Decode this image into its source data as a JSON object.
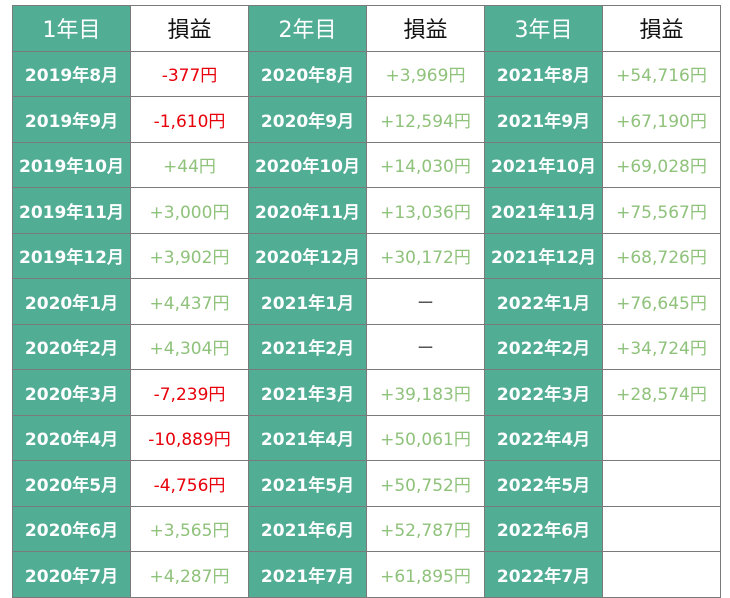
{
  "colors": {
    "header_green": "#52ad95",
    "profit_green": "#8fc27b",
    "loss_red": "#e8000b",
    "dash_gray": "#555555"
  },
  "headers": [
    "1年目",
    "損益",
    "2年目",
    "損益",
    "3年目",
    "損益"
  ],
  "rows": [
    [
      {
        "m": "2019年8月",
        "v": "-377円",
        "t": "loss"
      },
      {
        "m": "2020年8月",
        "v": "+3,969円",
        "t": "gain"
      },
      {
        "m": "2021年8月",
        "v": "+54,716円",
        "t": "gain"
      }
    ],
    [
      {
        "m": "2019年9月",
        "v": "-1,610円",
        "t": "loss"
      },
      {
        "m": "2020年9月",
        "v": "+12,594円",
        "t": "gain"
      },
      {
        "m": "2021年9月",
        "v": "+67,190円",
        "t": "gain"
      }
    ],
    [
      {
        "m": "2019年10月",
        "v": "+44円",
        "t": "gain"
      },
      {
        "m": "2020年10月",
        "v": "+14,030円",
        "t": "gain"
      },
      {
        "m": "2021年10月",
        "v": "+69,028円",
        "t": "gain"
      }
    ],
    [
      {
        "m": "2019年11月",
        "v": "+3,000円",
        "t": "gain"
      },
      {
        "m": "2020年11月",
        "v": "+13,036円",
        "t": "gain"
      },
      {
        "m": "2021年11月",
        "v": "+75,567円",
        "t": "gain"
      }
    ],
    [
      {
        "m": "2019年12月",
        "v": "+3,902円",
        "t": "gain"
      },
      {
        "m": "2020年12月",
        "v": "+30,172円",
        "t": "gain"
      },
      {
        "m": "2021年12月",
        "v": "+68,726円",
        "t": "gain"
      }
    ],
    [
      {
        "m": "2020年1月",
        "v": "+4,437円",
        "t": "gain"
      },
      {
        "m": "2021年1月",
        "v": "ー",
        "t": "dash"
      },
      {
        "m": "2022年1月",
        "v": "+76,645円",
        "t": "gain"
      }
    ],
    [
      {
        "m": "2020年2月",
        "v": "+4,304円",
        "t": "gain"
      },
      {
        "m": "2021年2月",
        "v": "ー",
        "t": "dash"
      },
      {
        "m": "2022年2月",
        "v": "+34,724円",
        "t": "gain"
      }
    ],
    [
      {
        "m": "2020年3月",
        "v": "-7,239円",
        "t": "loss"
      },
      {
        "m": "2021年3月",
        "v": "+39,183円",
        "t": "gain"
      },
      {
        "m": "2022年3月",
        "v": "+28,574円",
        "t": "gain"
      }
    ],
    [
      {
        "m": "2020年4月",
        "v": "-10,889円",
        "t": "loss"
      },
      {
        "m": "2021年4月",
        "v": "+50,061円",
        "t": "gain"
      },
      {
        "m": "2022年4月",
        "v": "",
        "t": "empty"
      }
    ],
    [
      {
        "m": "2020年5月",
        "v": "-4,756円",
        "t": "loss"
      },
      {
        "m": "2021年5月",
        "v": "+50,752円",
        "t": "gain"
      },
      {
        "m": "2022年5月",
        "v": "",
        "t": "empty"
      }
    ],
    [
      {
        "m": "2020年6月",
        "v": "+3,565円",
        "t": "gain"
      },
      {
        "m": "2021年6月",
        "v": "+52,787円",
        "t": "gain"
      },
      {
        "m": "2022年6月",
        "v": "",
        "t": "empty"
      }
    ],
    [
      {
        "m": "2020年7月",
        "v": "+4,287円",
        "t": "gain"
      },
      {
        "m": "2021年7月",
        "v": "+61,895円",
        "t": "gain"
      },
      {
        "m": "2022年7月",
        "v": "",
        "t": "empty"
      }
    ]
  ]
}
